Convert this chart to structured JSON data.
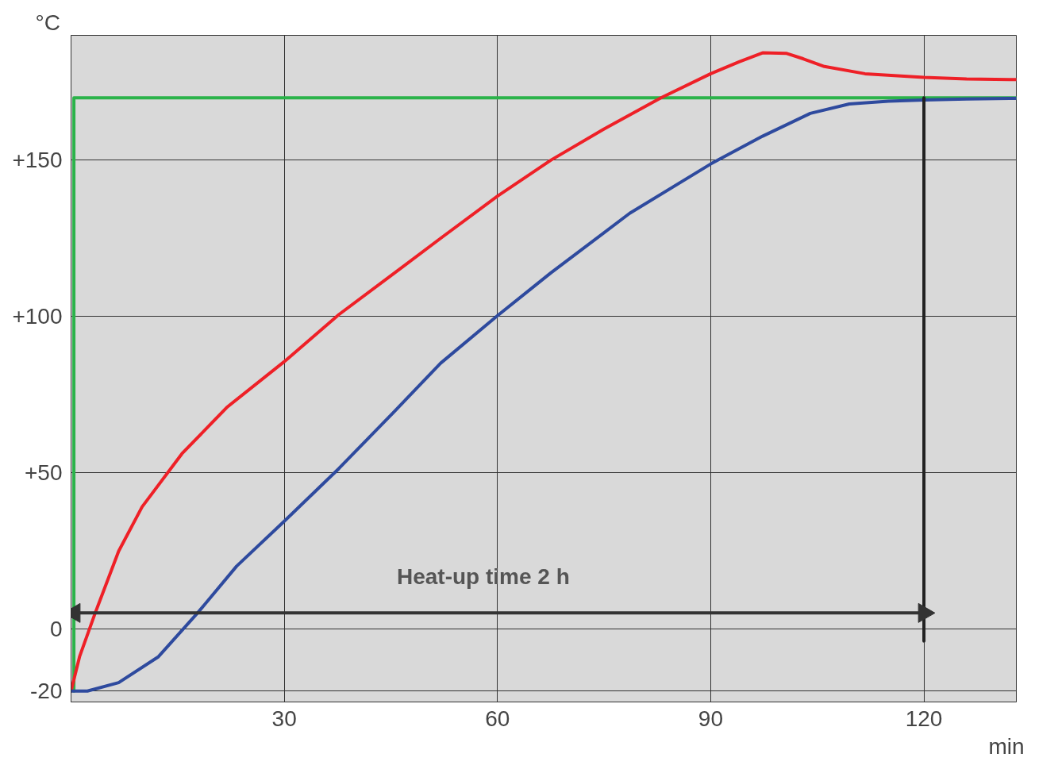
{
  "chart_data": {
    "type": "line",
    "xlabel": "min",
    "ylabel": "°C",
    "xlim": [
      0,
      133
    ],
    "ylim": [
      -23.5,
      190
    ],
    "xticks": [
      30,
      60,
      90,
      120
    ],
    "yticks": [
      {
        "value": -20,
        "label": "-20"
      },
      {
        "value": 0,
        "label": "0"
      },
      {
        "value": 50,
        "label": "+50"
      },
      {
        "value": 100,
        "label": "+100"
      },
      {
        "value": 150,
        "label": "+150"
      }
    ],
    "grid": true,
    "series": [
      {
        "color": "#2bb34a",
        "x": [
          0.4,
          0.4,
          133
        ],
        "values": [
          -20,
          170,
          170
        ]
      },
      {
        "color": "#ee2027",
        "x": [
          0,
          1.2,
          3.4,
          6.7,
          10,
          15.6,
          22,
          30,
          37.7,
          45,
          52,
          60,
          67.5,
          75,
          83,
          90,
          94,
          97.3,
          100.7,
          103,
          106,
          111.7,
          120,
          126,
          133
        ],
        "values": [
          -20,
          -9,
          5,
          24.8,
          39,
          56,
          71,
          85.5,
          100.6,
          113,
          125,
          138.5,
          150,
          160,
          170,
          177.7,
          181.5,
          184.4,
          184.2,
          182.5,
          180,
          177.7,
          176.5,
          176,
          175.8
        ]
      },
      {
        "color": "#2e4a9e",
        "x": [
          0,
          2.3,
          6.7,
          12.3,
          17.8,
          23.3,
          30,
          37.7,
          45.4,
          52,
          60,
          67.5,
          78.6,
          90,
          97.3,
          104,
          109.5,
          115,
          120,
          126,
          133
        ],
        "values": [
          -20,
          -20,
          -17.3,
          -9,
          5,
          20,
          34.4,
          51.3,
          69.3,
          85,
          100.2,
          113.9,
          133,
          148.8,
          157.7,
          165,
          168,
          168.9,
          169.3,
          169.6,
          169.8
        ]
      },
      {
        "color": "#222222",
        "x": [
          120,
          120
        ],
        "values": [
          -4,
          170
        ]
      },
      {
        "color": "#333333",
        "x": [
          0.5,
          120
        ],
        "values": [
          5,
          5
        ],
        "marker": "triangle"
      }
    ],
    "annotations": [
      {
        "text": "Heat-up time 2 h",
        "x": 58,
        "y": 5
      }
    ]
  }
}
